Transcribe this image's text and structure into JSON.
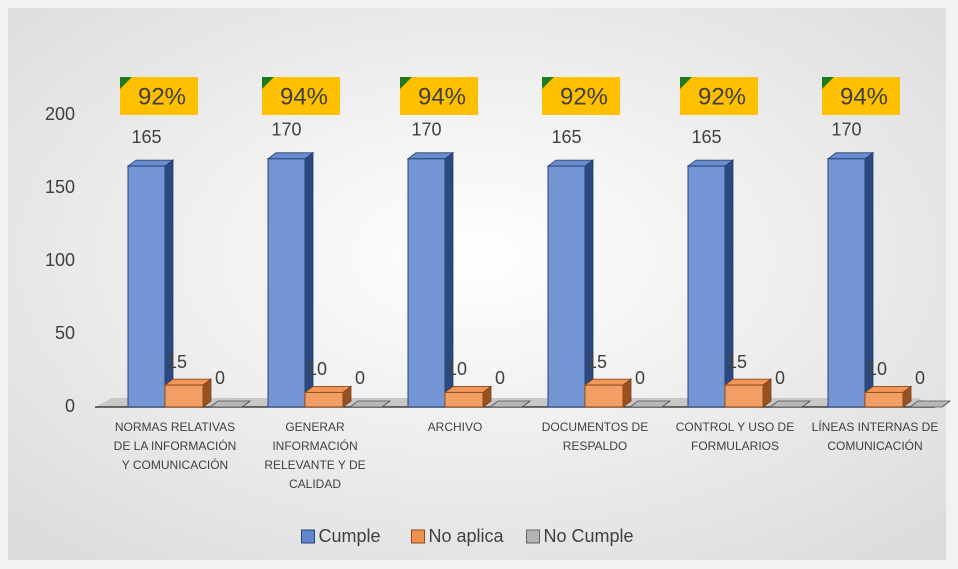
{
  "chart_data": {
    "type": "bar3d",
    "categories": [
      "NORMAS RELATIVAS DE LA INFORMACIÓN Y COMUNICACIÓN",
      "GENERAR INFORMACIÓN RELEVANTE Y DE CALIDAD",
      "ARCHIVO",
      "DOCUMENTOS DE RESPALDO",
      "CONTROL Y USO DE FORMULARIOS",
      "LÍNEAS INTERNAS DE COMUNICACIÓN"
    ],
    "series": [
      {
        "name": "Cumple",
        "color": "#4472c4",
        "values": [
          165,
          170,
          170,
          165,
          165,
          170
        ]
      },
      {
        "name": "No aplica",
        "color": "#ed7d31",
        "values": [
          15,
          10,
          10,
          15,
          15,
          10
        ]
      },
      {
        "name": "No Cumple",
        "color": "#a5a5a5",
        "values": [
          0,
          0,
          0,
          0,
          0,
          0
        ]
      }
    ],
    "annotations": [
      "92%",
      "94%",
      "94%",
      "92%",
      "92%",
      "94%"
    ],
    "ylim": [
      0,
      200
    ],
    "yticks": [
      0,
      50,
      100,
      150,
      200
    ],
    "legend": "bottom"
  }
}
